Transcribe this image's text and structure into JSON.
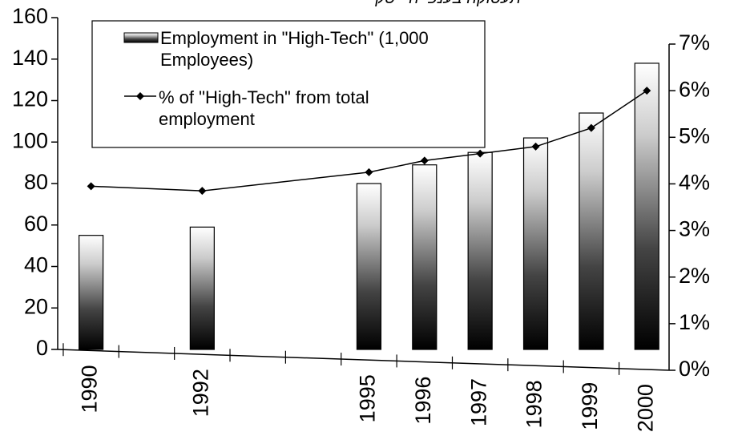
{
  "chart_data": {
    "type": "bar_line",
    "title": "תעסוקה בענפי היי-טק",
    "x": [
      1990,
      1992,
      1995,
      1996,
      1997,
      1998,
      1999,
      2000
    ],
    "xlim": [
      1989.4,
      2000.4
    ],
    "xticks": [
      1990,
      1992,
      1995,
      1996,
      1997,
      1998,
      1999,
      2000
    ],
    "series": [
      {
        "name": "Employment in \"High-Tech\" (1,000 Employees)",
        "type": "bar",
        "color": "#000000",
        "values": [
          55,
          59,
          80,
          89,
          95,
          102,
          114,
          138
        ]
      },
      {
        "name": "% of \"High-Tech\" from total employment",
        "type": "line",
        "axis": "y2",
        "color": "#000000",
        "values": [
          3.95,
          3.85,
          4.25,
          4.5,
          4.65,
          4.8,
          5.2,
          6.0
        ]
      }
    ],
    "ylim": [
      0,
      160
    ],
    "yticks": [
      0,
      20,
      40,
      60,
      80,
      100,
      120,
      140,
      160
    ],
    "y2lim": [
      0,
      7
    ],
    "y2ticks": [
      {
        "value": 0,
        "label": "0%"
      },
      {
        "value": 1,
        "label": "1%"
      },
      {
        "value": 2,
        "label": "2%"
      },
      {
        "value": 3,
        "label": "3%"
      },
      {
        "value": 4,
        "label": "4%"
      },
      {
        "value": 5,
        "label": "5%"
      },
      {
        "value": 6,
        "label": "6%"
      },
      {
        "value": 7,
        "label": "7%"
      }
    ],
    "legend": "upper left"
  }
}
